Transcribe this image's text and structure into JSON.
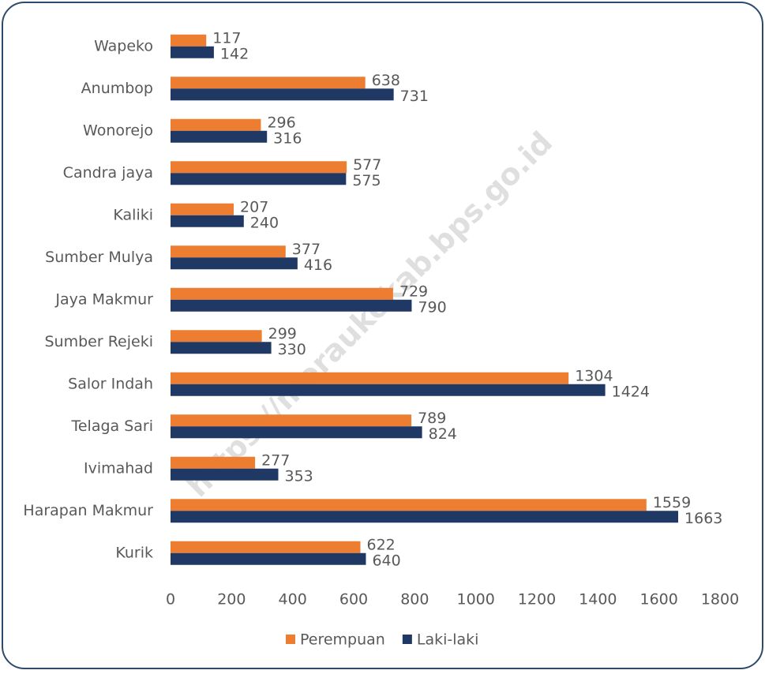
{
  "chart_data": {
    "type": "hbar",
    "categories": [
      "Wapeko",
      "Anumbop",
      "Wonorejo",
      "Candra jaya",
      "Kaliki",
      "Sumber Mulya",
      "Jaya Makmur",
      "Sumber Rejeki",
      "Salor Indah",
      "Telaga Sari",
      "Ivimahad",
      "Harapan Makmur",
      "Kurik"
    ],
    "series": [
      {
        "name": "Perempuan",
        "color": "#ed7d31",
        "values": [
          117,
          638,
          296,
          577,
          207,
          377,
          729,
          299,
          1304,
          789,
          277,
          1559,
          622
        ]
      },
      {
        "name": "Laki-laki",
        "color": "#203864",
        "values": [
          142,
          731,
          316,
          575,
          240,
          416,
          790,
          330,
          1424,
          824,
          353,
          1663,
          640
        ]
      }
    ],
    "xlim": [
      0,
      1800
    ],
    "xticks": [
      0,
      200,
      400,
      600,
      800,
      1000,
      1200,
      1400,
      1600,
      1800
    ],
    "legend": "bottom",
    "watermark": "https://meraukekab.bps.go.id"
  }
}
